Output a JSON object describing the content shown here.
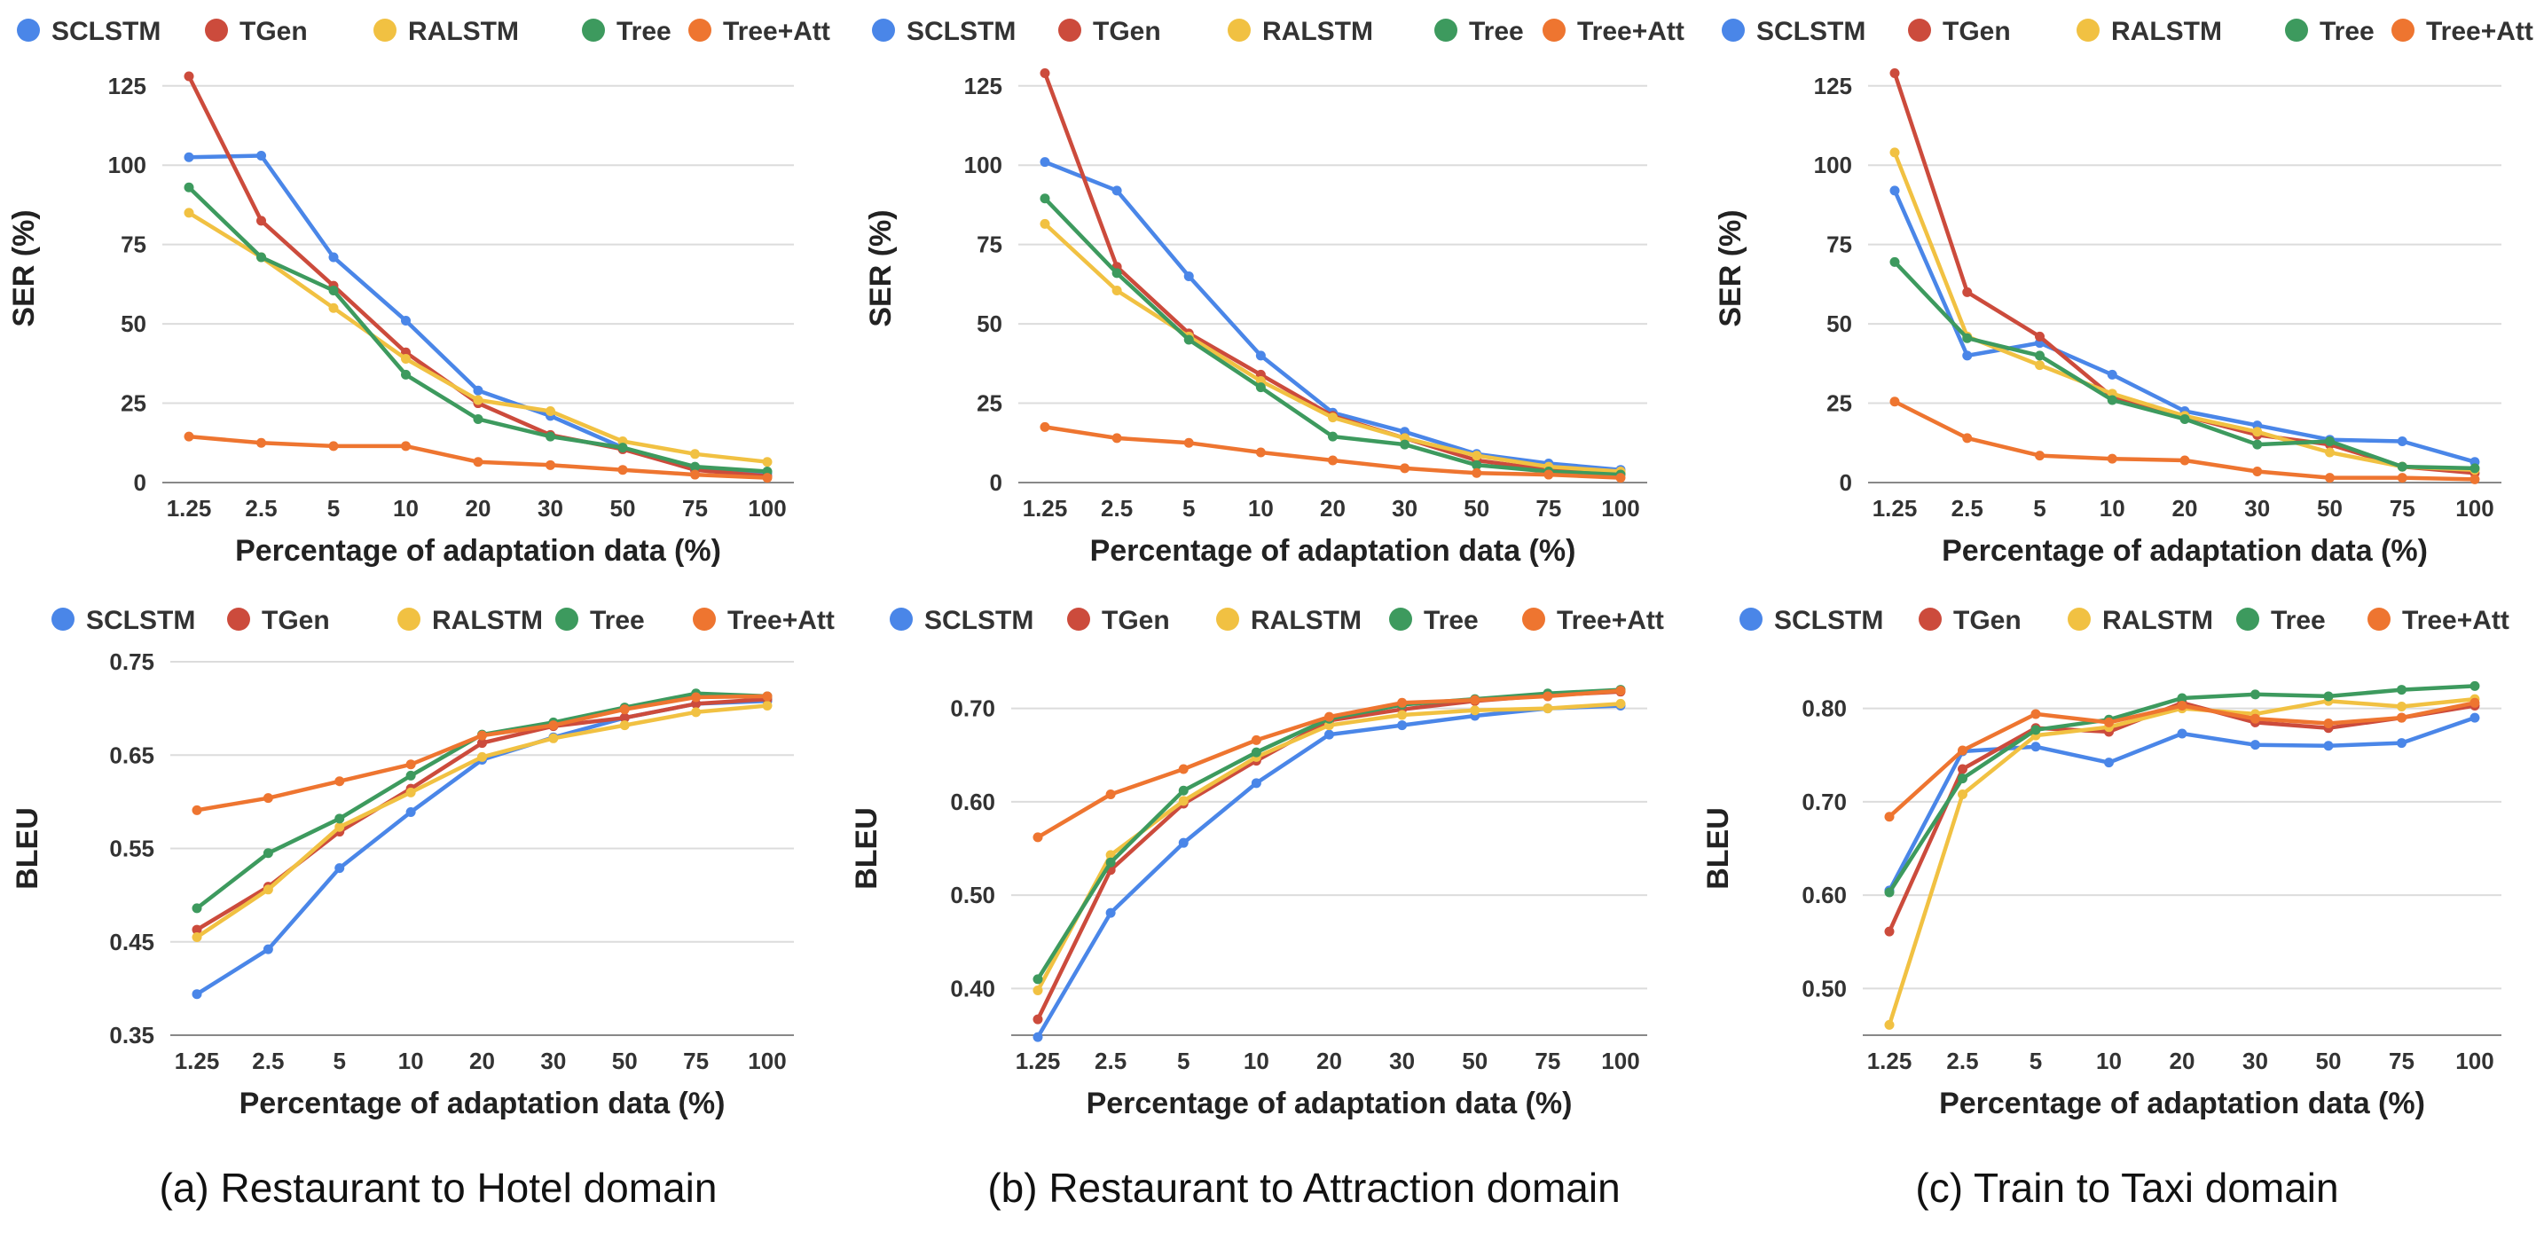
{
  "series_colors": {
    "SCLSTM": "#4a86e8",
    "TGen": "#cc4b3c",
    "RALSTM": "#f1c142",
    "Tree": "#3d9a5e",
    "Tree+Att": "#ee7530"
  },
  "captions": [
    "(a) Restaurant to Hotel domain",
    "(b) Restaurant to Attraction domain",
    "(c) Train to Taxi domain"
  ],
  "chart_data": [
    {
      "type": "line",
      "panel": "a",
      "metric": "SER",
      "xlabel": "Percentage of adaptation data (%)",
      "ylabel": "SER (%)",
      "categories": [
        "1.25",
        "2.5",
        "5",
        "10",
        "20",
        "30",
        "50",
        "75",
        "100"
      ],
      "ylim": [
        0,
        135
      ],
      "yticks": [
        0,
        25,
        50,
        75,
        100,
        125
      ],
      "ytick_labels": [
        "0",
        "25",
        "50",
        "75",
        "100",
        "125"
      ],
      "legend": [
        "SCLSTM",
        "TGen",
        "RALSTM",
        "Tree",
        "Tree+Att"
      ],
      "series": [
        {
          "name": "SCLSTM",
          "values": [
            102.5,
            103,
            71,
            51,
            29,
            21,
            11,
            4,
            3
          ]
        },
        {
          "name": "TGen",
          "values": [
            128,
            82.5,
            62,
            41,
            25,
            15,
            10.5,
            4,
            2
          ]
        },
        {
          "name": "RALSTM",
          "values": [
            85,
            71,
            55,
            39,
            26,
            22.5,
            13,
            9,
            6.5
          ]
        },
        {
          "name": "Tree",
          "values": [
            93,
            71,
            60.5,
            34,
            20,
            14.5,
            11,
            5,
            3.5
          ]
        },
        {
          "name": "Tree+Att",
          "values": [
            14.5,
            12.5,
            11.5,
            11.5,
            6.5,
            5.5,
            4,
            2.5,
            1.5
          ]
        }
      ]
    },
    {
      "type": "line",
      "panel": "b",
      "metric": "SER",
      "xlabel": "Percentage of adaptation data (%)",
      "ylabel": "SER (%)",
      "categories": [
        "1.25",
        "2.5",
        "5",
        "10",
        "20",
        "30",
        "50",
        "75",
        "100"
      ],
      "ylim": [
        0,
        135
      ],
      "yticks": [
        0,
        25,
        50,
        75,
        100,
        125
      ],
      "ytick_labels": [
        "0",
        "25",
        "50",
        "75",
        "100",
        "125"
      ],
      "legend": [
        "SCLSTM",
        "TGen",
        "RALSTM",
        "Tree",
        "Tree+Att"
      ],
      "series": [
        {
          "name": "SCLSTM",
          "values": [
            101,
            92,
            65,
            40,
            22,
            16,
            9,
            6,
            4
          ]
        },
        {
          "name": "TGen",
          "values": [
            129,
            68,
            47,
            34,
            21,
            14,
            7,
            4,
            3
          ]
        },
        {
          "name": "RALSTM",
          "values": [
            81.5,
            60.5,
            46,
            32,
            20.5,
            14,
            8.5,
            5,
            3.5
          ]
        },
        {
          "name": "Tree",
          "values": [
            89.5,
            66,
            45,
            30,
            14.5,
            12,
            5.5,
            3.5,
            2.5
          ]
        },
        {
          "name": "Tree+Att",
          "values": [
            17.5,
            14,
            12.5,
            9.5,
            7,
            4.5,
            3,
            2.5,
            1.5
          ]
        }
      ]
    },
    {
      "type": "line",
      "panel": "c",
      "metric": "SER",
      "xlabel": "Percentage of adaptation data (%)",
      "ylabel": "SER (%)",
      "categories": [
        "1.25",
        "2.5",
        "5",
        "10",
        "20",
        "30",
        "50",
        "75",
        "100"
      ],
      "ylim": [
        0,
        135
      ],
      "yticks": [
        0,
        25,
        50,
        75,
        100,
        125
      ],
      "ytick_labels": [
        "0",
        "25",
        "50",
        "75",
        "100",
        "125"
      ],
      "legend": [
        "SCLSTM",
        "TGen",
        "RALSTM",
        "Tree",
        "Tree+Att"
      ],
      "series": [
        {
          "name": "SCLSTM",
          "values": [
            92,
            40,
            44,
            34,
            22.5,
            18,
            13.5,
            13,
            6.5
          ]
        },
        {
          "name": "TGen",
          "values": [
            129,
            60,
            46,
            27,
            21,
            15,
            12,
            5,
            3
          ]
        },
        {
          "name": "RALSTM",
          "values": [
            104,
            46,
            37,
            28,
            21,
            16,
            9.5,
            5,
            4
          ]
        },
        {
          "name": "Tree",
          "values": [
            69.5,
            45.5,
            40,
            26,
            20,
            12,
            13,
            5,
            4.5
          ]
        },
        {
          "name": "Tree+Att",
          "values": [
            25.5,
            14,
            8.5,
            7.5,
            7,
            3.5,
            1.5,
            1.5,
            1
          ]
        }
      ]
    },
    {
      "type": "line",
      "panel": "a",
      "metric": "BLEU",
      "xlabel": "Percentage of adaptation data (%)",
      "ylabel": "BLEU",
      "categories": [
        "1.25",
        "2.5",
        "5",
        "10",
        "20",
        "30",
        "50",
        "75",
        "100"
      ],
      "ylim": [
        0.35,
        0.75
      ],
      "yticks": [
        0.35,
        0.45,
        0.55,
        0.65,
        0.75
      ],
      "ytick_labels": [
        "0.35",
        "0.45",
        "0.55",
        "0.65",
        "0.75"
      ],
      "legend": [
        "SCLSTM",
        "TGen",
        "RALSTM",
        "Tree",
        "Tree+Att"
      ],
      "series": [
        {
          "name": "SCLSTM",
          "values": [
            0.394,
            0.442,
            0.529,
            0.589,
            0.645,
            0.669,
            0.69,
            0.705,
            0.708
          ]
        },
        {
          "name": "TGen",
          "values": [
            0.463,
            0.509,
            0.568,
            0.614,
            0.663,
            0.681,
            0.69,
            0.705,
            0.71
          ]
        },
        {
          "name": "RALSTM",
          "values": [
            0.455,
            0.506,
            0.573,
            0.61,
            0.648,
            0.668,
            0.682,
            0.696,
            0.703
          ]
        },
        {
          "name": "Tree",
          "values": [
            0.486,
            0.545,
            0.582,
            0.628,
            0.672,
            0.685,
            0.701,
            0.716,
            0.713
          ]
        },
        {
          "name": "Tree+Att",
          "values": [
            0.591,
            0.604,
            0.622,
            0.64,
            0.671,
            0.682,
            0.699,
            0.712,
            0.713
          ]
        }
      ]
    },
    {
      "type": "line",
      "panel": "b",
      "metric": "BLEU",
      "xlabel": "Percentage of adaptation data (%)",
      "ylabel": "BLEU",
      "categories": [
        "1.25",
        "2.5",
        "5",
        "10",
        "20",
        "30",
        "50",
        "75",
        "100"
      ],
      "ylim": [
        0.35,
        0.75
      ],
      "yticks": [
        0.4,
        0.5,
        0.6,
        0.7
      ],
      "ytick_labels": [
        "0.40",
        "0.50",
        "0.60",
        "0.70"
      ],
      "legend": [
        "SCLSTM",
        "TGen",
        "RALSTM",
        "Tree",
        "Tree+Att"
      ],
      "series": [
        {
          "name": "SCLSTM",
          "values": [
            0.348,
            0.481,
            0.556,
            0.62,
            0.672,
            0.682,
            0.692,
            0.7,
            0.703
          ]
        },
        {
          "name": "TGen",
          "values": [
            0.367,
            0.527,
            0.598,
            0.644,
            0.687,
            0.699,
            0.708,
            0.714,
            0.718
          ]
        },
        {
          "name": "RALSTM",
          "values": [
            0.398,
            0.543,
            0.601,
            0.648,
            0.682,
            0.693,
            0.698,
            0.7,
            0.705
          ]
        },
        {
          "name": "Tree",
          "values": [
            0.41,
            0.535,
            0.612,
            0.653,
            0.689,
            0.704,
            0.71,
            0.716,
            0.72
          ]
        },
        {
          "name": "Tree+Att",
          "values": [
            0.562,
            0.608,
            0.635,
            0.666,
            0.691,
            0.706,
            0.709,
            0.713,
            0.719
          ]
        }
      ]
    },
    {
      "type": "line",
      "panel": "c",
      "metric": "BLEU",
      "xlabel": "Percentage of adaptation data (%)",
      "ylabel": "BLEU",
      "categories": [
        "1.25",
        "2.5",
        "5",
        "10",
        "20",
        "30",
        "50",
        "75",
        "100"
      ],
      "ylim": [
        0.45,
        0.85
      ],
      "yticks": [
        0.5,
        0.6,
        0.7,
        0.8
      ],
      "ytick_labels": [
        "0.50",
        "0.60",
        "0.70",
        "0.80"
      ],
      "legend": [
        "SCLSTM",
        "TGen",
        "RALSTM",
        "Tree",
        "Tree+Att"
      ],
      "series": [
        {
          "name": "SCLSTM",
          "values": [
            0.605,
            0.754,
            0.759,
            0.742,
            0.773,
            0.761,
            0.76,
            0.763,
            0.79
          ]
        },
        {
          "name": "TGen",
          "values": [
            0.561,
            0.735,
            0.779,
            0.775,
            0.806,
            0.785,
            0.779,
            0.79,
            0.803
          ]
        },
        {
          "name": "RALSTM",
          "values": [
            0.461,
            0.708,
            0.771,
            0.78,
            0.8,
            0.794,
            0.808,
            0.802,
            0.81
          ]
        },
        {
          "name": "Tree",
          "values": [
            0.603,
            0.725,
            0.777,
            0.788,
            0.811,
            0.815,
            0.813,
            0.82,
            0.824
          ]
        },
        {
          "name": "Tree+Att",
          "values": [
            0.684,
            0.755,
            0.794,
            0.785,
            0.803,
            0.789,
            0.784,
            0.79,
            0.806
          ]
        }
      ]
    }
  ]
}
